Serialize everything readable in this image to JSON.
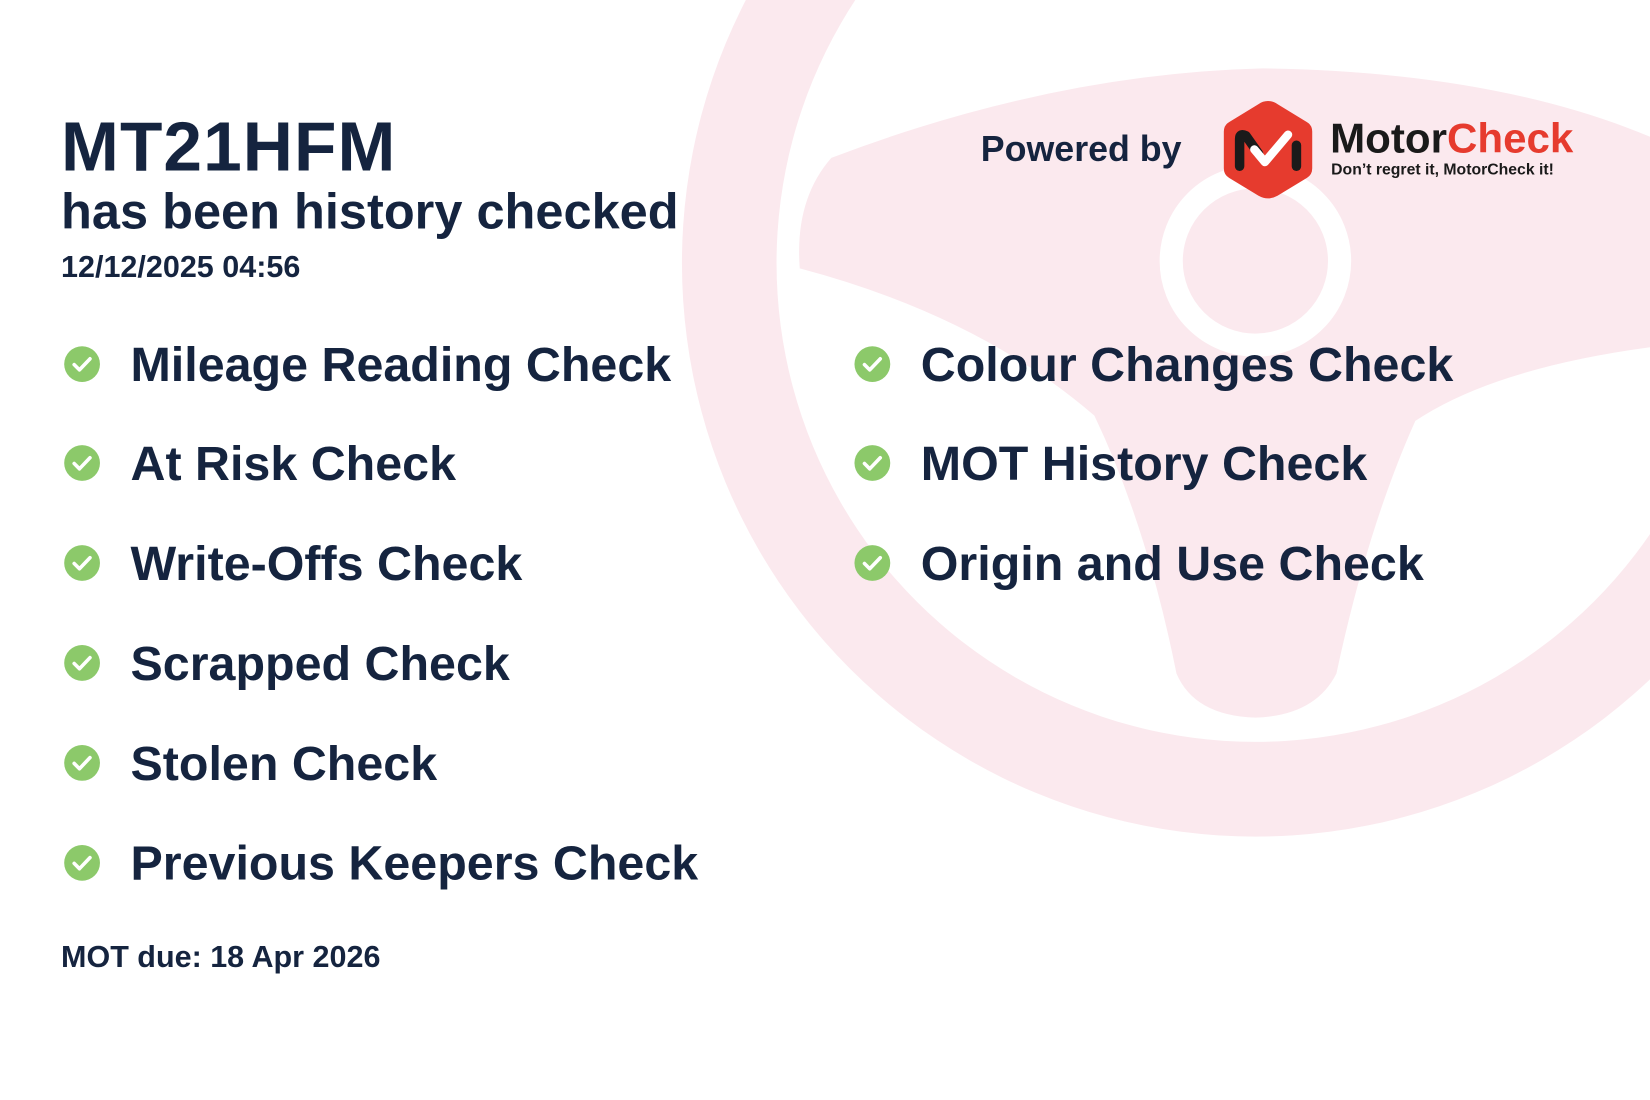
{
  "header": {
    "registration": "MT21HFM",
    "subtitle": "has been history checked",
    "checked_at": "12/12/2025 04:56"
  },
  "branding": {
    "powered_by": "Powered by",
    "brand_part1": "Motor",
    "brand_part2": "Check",
    "tagline": "Don’t regret it, MotorCheck it!",
    "brand_color": "#e63b2e",
    "background_accent": "#fbe9ee"
  },
  "checks_left": [
    {
      "label": "Mileage Reading Check",
      "icon": "check-circle-icon"
    },
    {
      "label": "At Risk Check",
      "icon": "check-circle-icon"
    },
    {
      "label": "Write-Offs Check",
      "icon": "check-circle-icon"
    },
    {
      "label": "Scrapped Check",
      "icon": "check-circle-icon"
    },
    {
      "label": "Stolen Check",
      "icon": "check-circle-icon"
    },
    {
      "label": "Previous Keepers Check",
      "icon": "check-circle-icon"
    }
  ],
  "checks_right": [
    {
      "label": "Colour Changes Check",
      "icon": "check-circle-icon"
    },
    {
      "label": "MOT History Check",
      "icon": "check-circle-icon"
    },
    {
      "label": "Origin and Use Check",
      "icon": "check-circle-icon"
    }
  ],
  "check_color": "#8cc96a",
  "footer": {
    "mot_due": "MOT due: 18 Apr 2026"
  }
}
